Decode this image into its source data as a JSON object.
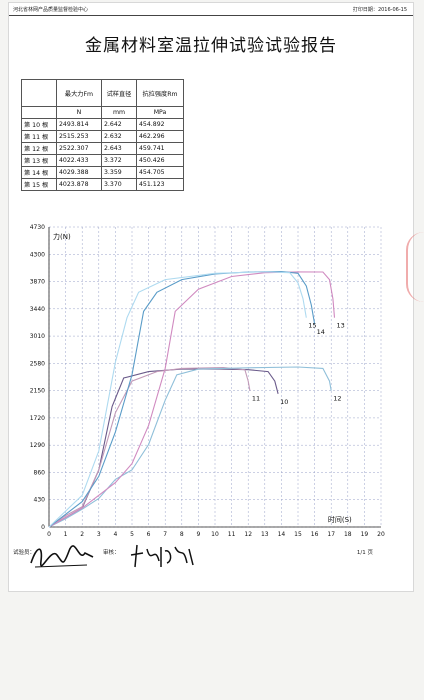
{
  "header": {
    "org": "河北省林网产品质量监督检验中心",
    "print_date_label": "打印日期：",
    "print_date": "2016-06-15"
  },
  "title": "金属材料室温拉伸试验试验报告",
  "table": {
    "headers": [
      "最大力Fm",
      "试样直径",
      "抗拉强度Rm"
    ],
    "units": [
      "N",
      "mm",
      "MPa"
    ],
    "rows": [
      {
        "label": "第 10 根",
        "fm": "2493.814",
        "d": "2.642",
        "rm": "454.892"
      },
      {
        "label": "第 11 根",
        "fm": "2515.253",
        "d": "2.632",
        "rm": "462.296"
      },
      {
        "label": "第 12 根",
        "fm": "2522.307",
        "d": "2.643",
        "rm": "459.741"
      },
      {
        "label": "第 13 根",
        "fm": "4022.433",
        "d": "3.372",
        "rm": "450.426"
      },
      {
        "label": "第 14 根",
        "fm": "4029.388",
        "d": "3.359",
        "rm": "454.705"
      },
      {
        "label": "第 15 根",
        "fm": "4023.878",
        "d": "3.370",
        "rm": "451.123"
      }
    ]
  },
  "chart_data": {
    "type": "line",
    "ylabel": "力(N)",
    "xlabel": "时间(S)",
    "y_ticks": [
      0,
      430,
      860,
      1290,
      1720,
      2150,
      2580,
      3010,
      3440,
      3870,
      4300,
      4730
    ],
    "x_ticks": [
      0,
      1,
      2,
      3,
      4,
      5,
      6,
      7,
      8,
      9,
      10,
      11,
      12,
      13,
      14,
      15,
      16,
      17,
      18,
      19,
      20
    ],
    "ylim": [
      0,
      4730
    ],
    "xlim": [
      0,
      20
    ],
    "grid": true,
    "series": [
      {
        "name": "10",
        "color": "#6a5a8a",
        "points": [
          [
            0,
            0
          ],
          [
            1,
            150
          ],
          [
            2,
            300
          ],
          [
            3,
            900
          ],
          [
            3.8,
            1900
          ],
          [
            4.5,
            2350
          ],
          [
            6,
            2450
          ],
          [
            8,
            2490
          ],
          [
            10,
            2493
          ],
          [
            12,
            2480
          ],
          [
            13.2,
            2450
          ],
          [
            13.6,
            2300
          ],
          [
            13.8,
            2100
          ]
        ]
      },
      {
        "name": "11",
        "color": "#c29ab8",
        "points": [
          [
            0,
            0
          ],
          [
            1,
            180
          ],
          [
            2,
            320
          ],
          [
            3,
            900
          ],
          [
            4,
            1800
          ],
          [
            5,
            2300
          ],
          [
            6.5,
            2450
          ],
          [
            8,
            2500
          ],
          [
            10.5,
            2515
          ],
          [
            11.8,
            2480
          ],
          [
            12,
            2300
          ],
          [
            12.1,
            2150
          ]
        ]
      },
      {
        "name": "12",
        "color": "#8fbfd9",
        "points": [
          [
            0,
            0
          ],
          [
            1,
            130
          ],
          [
            2,
            280
          ],
          [
            3,
            450
          ],
          [
            4,
            750
          ],
          [
            5,
            900
          ],
          [
            6,
            1300
          ],
          [
            7,
            2000
          ],
          [
            7.7,
            2400
          ],
          [
            9,
            2490
          ],
          [
            12,
            2510
          ],
          [
            15,
            2522
          ],
          [
            16.5,
            2500
          ],
          [
            16.9,
            2300
          ],
          [
            17,
            2150
          ]
        ]
      },
      {
        "name": "13",
        "color": "#d08ac0",
        "points": [
          [
            0,
            0
          ],
          [
            1,
            150
          ],
          [
            2,
            300
          ],
          [
            3,
            500
          ],
          [
            4,
            700
          ],
          [
            5,
            1000
          ],
          [
            6,
            1600
          ],
          [
            7,
            2500
          ],
          [
            7.6,
            3400
          ],
          [
            9,
            3750
          ],
          [
            11,
            3950
          ],
          [
            13,
            4010
          ],
          [
            15,
            4022
          ],
          [
            16.5,
            4020
          ],
          [
            16.9,
            3900
          ],
          [
            17.1,
            3600
          ],
          [
            17.2,
            3300
          ]
        ]
      },
      {
        "name": "14",
        "color": "#5a9cc8",
        "points": [
          [
            0,
            0
          ],
          [
            1,
            200
          ],
          [
            2,
            400
          ],
          [
            3,
            800
          ],
          [
            4,
            1500
          ],
          [
            5,
            2400
          ],
          [
            5.7,
            3400
          ],
          [
            6.5,
            3700
          ],
          [
            8,
            3900
          ],
          [
            10,
            3990
          ],
          [
            12,
            4020
          ],
          [
            14,
            4029
          ],
          [
            15,
            4000
          ],
          [
            15.5,
            3800
          ],
          [
            15.8,
            3500
          ],
          [
            16,
            3200
          ]
        ]
      },
      {
        "name": "15",
        "color": "#aedaf0",
        "points": [
          [
            0,
            0
          ],
          [
            1,
            250
          ],
          [
            2,
            500
          ],
          [
            3,
            1200
          ],
          [
            4,
            2600
          ],
          [
            4.7,
            3300
          ],
          [
            5.4,
            3700
          ],
          [
            7,
            3900
          ],
          [
            10,
            4000
          ],
          [
            13,
            4023
          ],
          [
            14.5,
            4010
          ],
          [
            15,
            3850
          ],
          [
            15.3,
            3600
          ],
          [
            15.5,
            3300
          ]
        ]
      }
    ]
  },
  "footer": {
    "tester_label": "试验员：",
    "reviewer_label": "审核：",
    "page": "1/1 页"
  }
}
